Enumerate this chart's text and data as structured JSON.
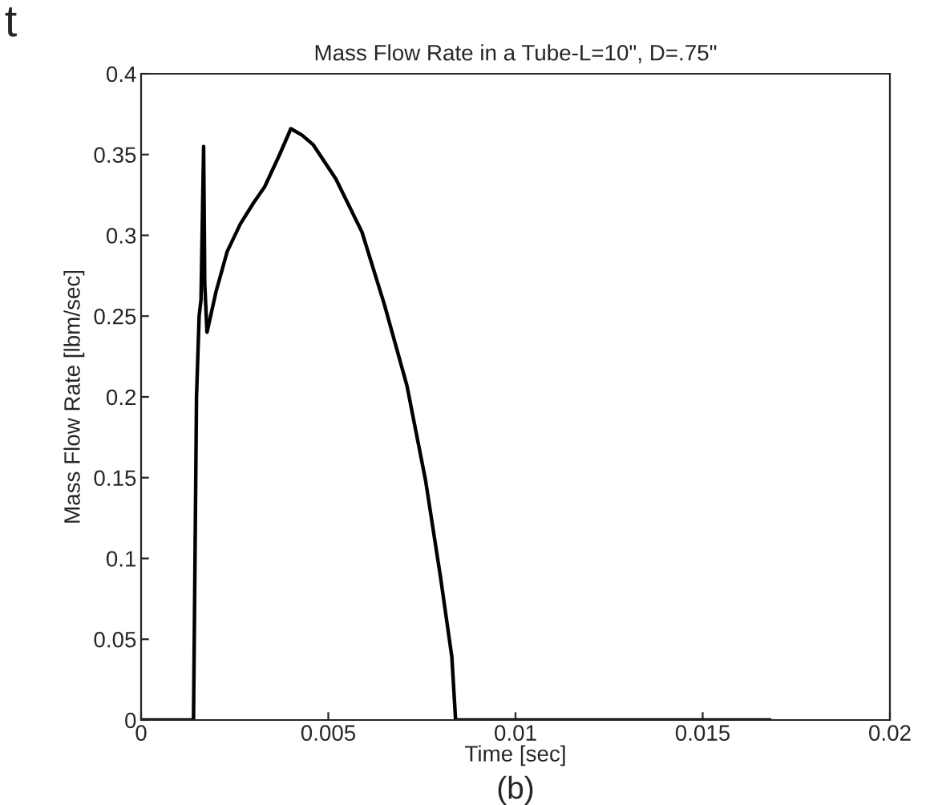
{
  "chart_data": {
    "type": "line",
    "title": "Mass Flow Rate in a Tube-L=10\", D=.75\"",
    "xlabel": "Time [sec]",
    "ylabel": "Mass Flow Rate [lbm/sec]",
    "annotations": [
      "t",
      "(b)"
    ],
    "series": [
      {
        "color": "#000000",
        "x": [
          0,
          0.0014,
          0.00142,
          0.00148,
          0.00155,
          0.0016,
          0.00167,
          0.0017,
          0.00176,
          0.002,
          0.0023,
          0.00265,
          0.003,
          0.0033,
          0.0037,
          0.004,
          0.0043,
          0.0046,
          0.0052,
          0.0059,
          0.0065,
          0.0071,
          0.0076,
          0.008,
          0.0083,
          0.0084,
          0.0168
        ],
        "values": [
          0,
          0,
          0.05,
          0.2,
          0.25,
          0.26,
          0.355,
          0.27,
          0.24,
          0.265,
          0.29,
          0.307,
          0.32,
          0.33,
          0.35,
          0.366,
          0.362,
          0.356,
          0.335,
          0.302,
          0.257,
          0.207,
          0.148,
          0.088,
          0.039,
          0,
          0
        ]
      }
    ],
    "xlim": [
      0,
      0.02
    ],
    "ylim": [
      0,
      0.4
    ],
    "xticks": [
      0,
      0.005,
      0.01,
      0.015,
      0.02
    ],
    "yticks": [
      0,
      0.05,
      0.1,
      0.15,
      0.2,
      0.25,
      0.3,
      0.35,
      0.4
    ],
    "grid": false,
    "marker": "none",
    "line_style": "solid"
  }
}
